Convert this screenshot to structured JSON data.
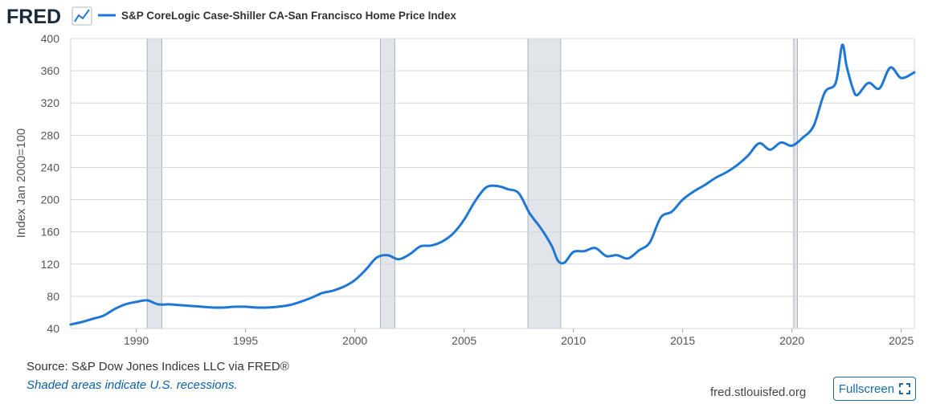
{
  "header": {
    "logo_text": "FRED",
    "series_title": "S&P CoreLogic Case-Shiller CA-San Francisco Home Price Index"
  },
  "chart_data": {
    "type": "line",
    "title": "S&P CoreLogic Case-Shiller CA-San Francisco Home Price Index",
    "ylabel": "Index Jan 2000=100",
    "xlabel": "",
    "xlim": [
      1987.0,
      2025.6
    ],
    "ylim": [
      40,
      400
    ],
    "y_ticks": [
      40,
      80,
      120,
      160,
      200,
      240,
      280,
      320,
      360,
      400
    ],
    "x_ticks": [
      1990,
      1995,
      2000,
      2005,
      2010,
      2015,
      2020,
      2025
    ],
    "x_tick_labels": [
      "1990",
      "1995",
      "2000",
      "2005",
      "2010",
      "2015",
      "2020",
      "2025"
    ],
    "y_tick_labels": [
      "40",
      "80",
      "120",
      "160",
      "200",
      "240",
      "280",
      "320",
      "360",
      "400"
    ],
    "grid": true,
    "line_color": "#1f77d4",
    "recessions": [
      {
        "start": 1990.5,
        "end": 1991.17
      },
      {
        "start": 2001.17,
        "end": 2001.83
      },
      {
        "start": 2007.92,
        "end": 2009.42
      },
      {
        "start": 2020.08,
        "end": 2020.25
      }
    ],
    "series": [
      {
        "name": "S&P CoreLogic Case-Shiller CA-San Francisco Home Price Index",
        "x": [
          1987.0,
          1987.5,
          1988.0,
          1988.5,
          1989.0,
          1989.5,
          1990.0,
          1990.5,
          1991.0,
          1991.5,
          1992.0,
          1992.5,
          1993.0,
          1993.5,
          1994.0,
          1994.5,
          1995.0,
          1995.5,
          1996.0,
          1996.5,
          1997.0,
          1997.5,
          1998.0,
          1998.5,
          1999.0,
          1999.5,
          2000.0,
          2000.5,
          2001.0,
          2001.5,
          2002.0,
          2002.5,
          2003.0,
          2003.5,
          2004.0,
          2004.5,
          2005.0,
          2005.5,
          2006.0,
          2006.5,
          2007.0,
          2007.5,
          2008.0,
          2008.5,
          2009.0,
          2009.3,
          2009.6,
          2010.0,
          2010.5,
          2011.0,
          2011.5,
          2012.0,
          2012.5,
          2013.0,
          2013.5,
          2014.0,
          2014.5,
          2015.0,
          2015.5,
          2016.0,
          2016.5,
          2017.0,
          2017.5,
          2018.0,
          2018.5,
          2019.0,
          2019.5,
          2020.0,
          2020.5,
          2021.0,
          2021.5,
          2022.0,
          2022.3,
          2022.5,
          2022.8,
          2023.0,
          2023.5,
          2024.0,
          2024.5,
          2025.0,
          2025.6
        ],
        "values": [
          45,
          48,
          52,
          56,
          64,
          70,
          73,
          75,
          70,
          70,
          69,
          68,
          67,
          66,
          66,
          67,
          67,
          66,
          66,
          67,
          69,
          73,
          78,
          84,
          87,
          92,
          100,
          113,
          128,
          131,
          126,
          132,
          142,
          143,
          148,
          158,
          175,
          198,
          215,
          217,
          213,
          208,
          183,
          165,
          143,
          124,
          122,
          135,
          136,
          140,
          130,
          131,
          127,
          137,
          147,
          178,
          185,
          200,
          210,
          218,
          227,
          234,
          243,
          255,
          270,
          262,
          271,
          267,
          277,
          292,
          333,
          345,
          392,
          366,
          337,
          330,
          345,
          338,
          364,
          351,
          358
        ]
      }
    ]
  },
  "footer": {
    "source": "Source: S&P Dow Jones Indices LLC via FRED®",
    "note": "Shaded areas indicate U.S. recessions.",
    "site": "fred.stlouisfed.org",
    "fullscreen_label": "Fullscreen"
  }
}
